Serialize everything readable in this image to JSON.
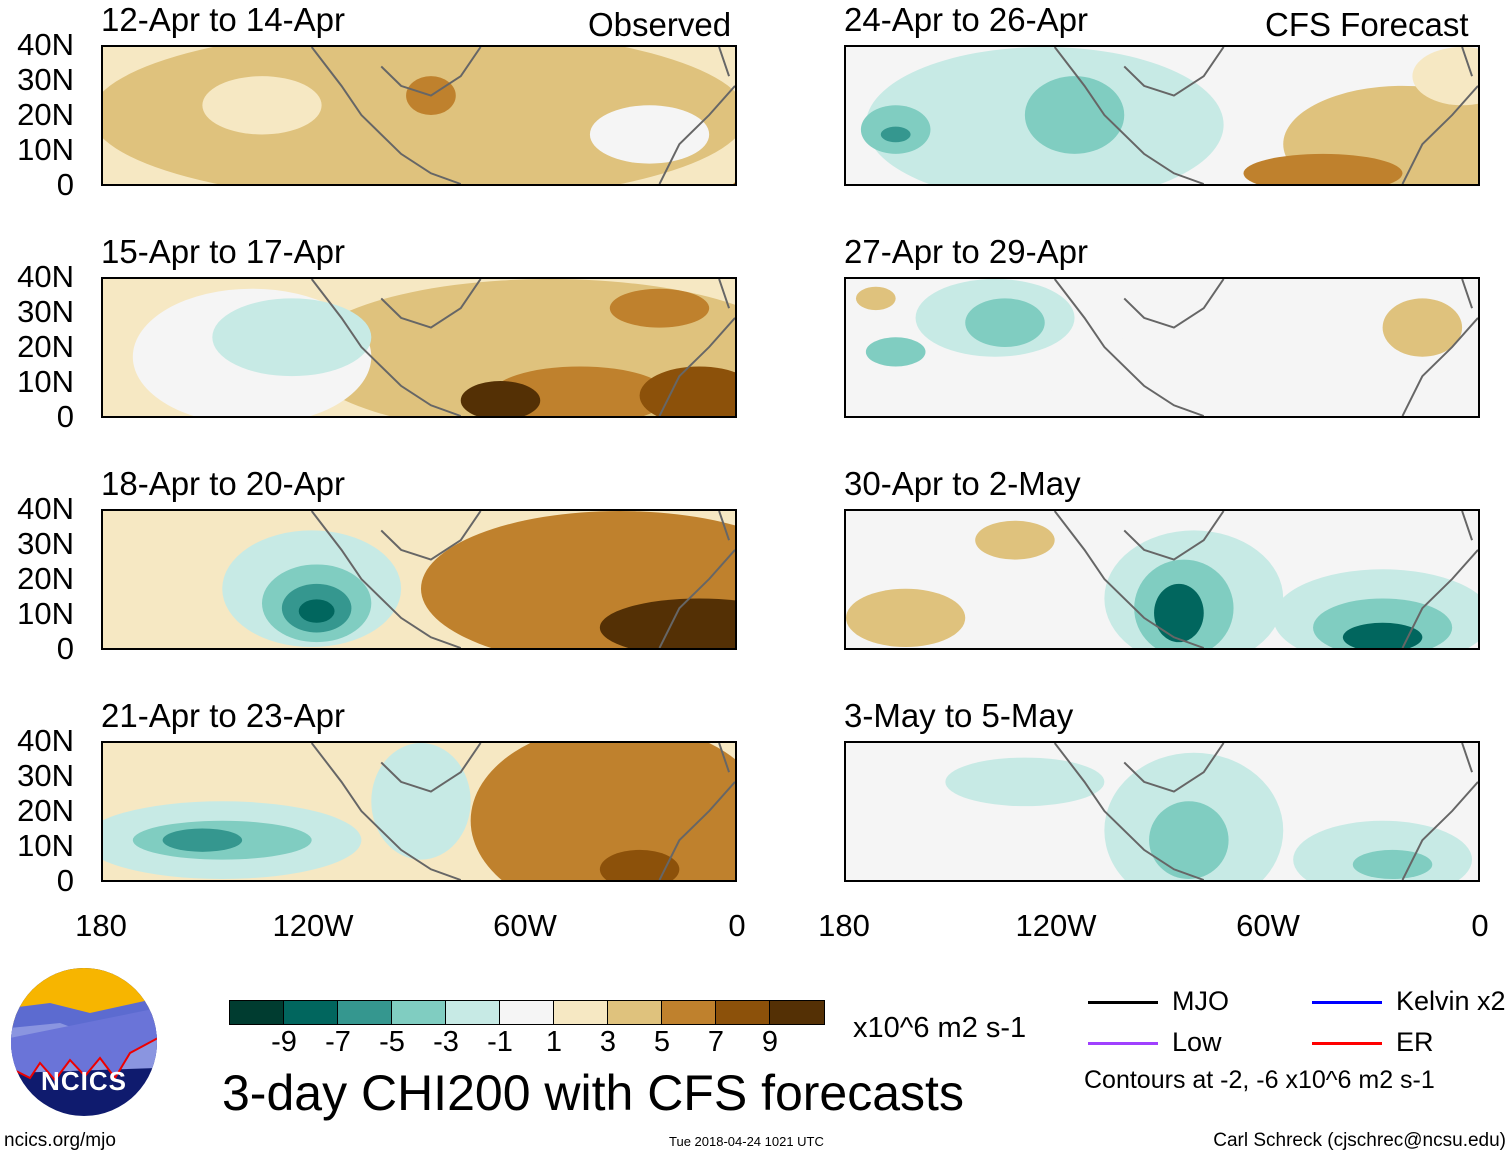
{
  "header": {
    "left_label": "Observed",
    "right_label": "CFS Forecast"
  },
  "panels": [
    {
      "title": "12-Apr to 14-Apr",
      "column": "observed"
    },
    {
      "title": "15-Apr to 17-Apr",
      "column": "observed"
    },
    {
      "title": "18-Apr to 20-Apr",
      "column": "observed"
    },
    {
      "title": "21-Apr to 23-Apr",
      "column": "observed"
    },
    {
      "title": "24-Apr to 26-Apr",
      "column": "forecast"
    },
    {
      "title": "27-Apr to 29-Apr",
      "column": "forecast"
    },
    {
      "title": "30-Apr to 2-May",
      "column": "forecast"
    },
    {
      "title": "3-May to 5-May",
      "column": "forecast"
    }
  ],
  "y_ticks": [
    "40N",
    "30N",
    "20N",
    "10N",
    "0"
  ],
  "x_ticks": [
    "180",
    "120W",
    "60W",
    "0"
  ],
  "colorbar": {
    "colors": [
      "#003c30",
      "#01665e",
      "#35978f",
      "#80cdc1",
      "#c7eae5",
      "#f5f5f5",
      "#f6e8c3",
      "#dfc27d",
      "#bf812d",
      "#8c510a",
      "#543005"
    ],
    "labels": [
      "-9",
      "-7",
      "-5",
      "-3",
      "-1",
      "1",
      "3",
      "5",
      "7",
      "9"
    ],
    "units": "x10^6 m2 s-1"
  },
  "title": "3-day CHI200 with CFS forecasts",
  "legend": {
    "items": [
      {
        "label": "MJO",
        "color": "#000000"
      },
      {
        "label": "Kelvin x2",
        "color": "#0000ff"
      },
      {
        "label": "Low",
        "color": "#a040ff"
      },
      {
        "label": "ER",
        "color": "#ff0000"
      }
    ],
    "contours_note": "Contours at -2, -6 x10^6 m2 s-1"
  },
  "logo": {
    "text": "NCICS"
  },
  "footer": {
    "url": "ncics.org/mjo",
    "timestamp": "Tue 2018-04-24 1021 UTC",
    "credit": "Carl Schreck (cjschrec@ncsu.edu)"
  }
}
